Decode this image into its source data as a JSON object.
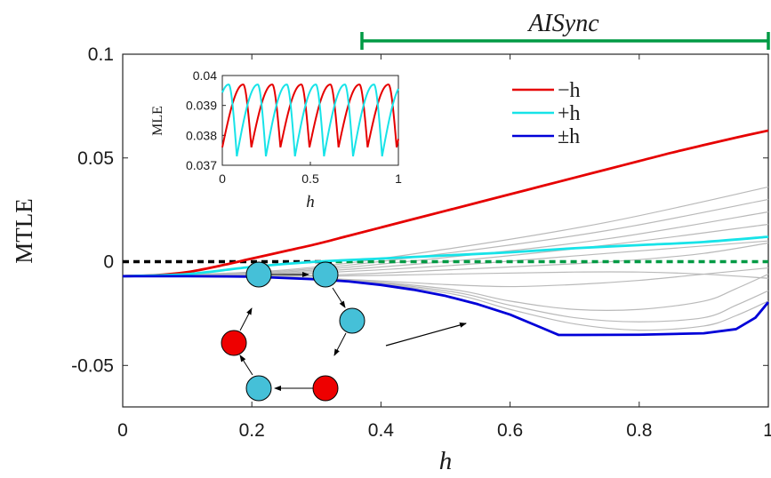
{
  "chart_data": [
    {
      "type": "line",
      "xlabel": "h",
      "ylabel": "MTLE",
      "xlim": [
        0,
        1
      ],
      "ylim": [
        -0.07,
        0.1
      ],
      "xticks": [
        "0",
        "0.2",
        "0.4",
        "0.6",
        "0.8",
        "1"
      ],
      "yticks": [
        "0.1",
        "0.05",
        "0",
        "-0.05"
      ],
      "legend": {
        "placement": "top-right",
        "entries": [
          "−h",
          "+h",
          "±h"
        ]
      },
      "annotation": {
        "label": "AISync",
        "x_range": [
          0.37,
          1.0
        ],
        "color": "#009a44"
      },
      "zero_line": {
        "y": 0,
        "black_range": [
          0,
          0.33
        ],
        "green_range": [
          0.33,
          1.0
        ]
      },
      "series": [
        {
          "name": "−h",
          "color": "#e60000",
          "x": [
            0,
            0.05,
            0.1,
            0.15,
            0.2,
            0.25,
            0.3,
            0.35,
            0.4,
            0.45,
            0.5,
            0.55,
            0.6,
            0.65,
            0.7,
            0.75,
            0.8,
            0.85,
            0.9,
            0.95,
            1.0
          ],
          "y": [
            -0.007,
            -0.0065,
            -0.005,
            -0.002,
            0.0015,
            0.005,
            0.0085,
            0.0125,
            0.0165,
            0.0205,
            0.0245,
            0.0285,
            0.0325,
            0.0365,
            0.0405,
            0.0445,
            0.0485,
            0.0525,
            0.0562,
            0.0598,
            0.0632
          ]
        },
        {
          "name": "+h",
          "color": "#17e3e8",
          "x": [
            0,
            0.1,
            0.2,
            0.3,
            0.4,
            0.5,
            0.6,
            0.7,
            0.8,
            0.9,
            1.0
          ],
          "y": [
            -0.007,
            -0.006,
            -0.0025,
            0.0,
            0.0015,
            0.003,
            0.0045,
            0.0065,
            0.008,
            0.0095,
            0.012
          ]
        },
        {
          "name": "±h",
          "color": "#0000d8",
          "x": [
            0,
            0.1,
            0.2,
            0.3,
            0.35,
            0.4,
            0.45,
            0.5,
            0.55,
            0.6,
            0.65,
            0.675,
            0.7,
            0.8,
            0.9,
            0.95,
            0.98,
            1.0
          ],
          "y": [
            -0.007,
            -0.007,
            -0.0072,
            -0.0085,
            -0.0095,
            -0.0112,
            -0.0135,
            -0.0165,
            -0.0205,
            -0.0255,
            -0.032,
            -0.0353,
            -0.0353,
            -0.0352,
            -0.0345,
            -0.0325,
            -0.027,
            -0.0195
          ]
        }
      ],
      "gray_series": [
        {
          "x": [
            0,
            0.25,
            0.5,
            0.75,
            1.0
          ],
          "y": [
            -0.007,
            -0.004,
            0.006,
            0.019,
            0.036
          ]
        },
        {
          "x": [
            0,
            0.25,
            0.5,
            0.75,
            1.0
          ],
          "y": [
            -0.007,
            -0.0045,
            0.004,
            0.015,
            0.03
          ]
        },
        {
          "x": [
            0,
            0.25,
            0.5,
            0.75,
            1.0
          ],
          "y": [
            -0.007,
            -0.005,
            0.002,
            0.011,
            0.024
          ]
        },
        {
          "x": [
            0,
            0.25,
            0.5,
            0.75,
            1.0
          ],
          "y": [
            -0.007,
            -0.0055,
            0.0,
            0.008,
            0.018
          ]
        },
        {
          "x": [
            0,
            0.25,
            0.5,
            0.75,
            1.0
          ],
          "y": [
            -0.007,
            -0.006,
            -0.002,
            0.004,
            0.01
          ]
        },
        {
          "x": [
            0,
            0.3,
            0.5,
            0.7,
            0.8,
            0.9,
            1.0
          ],
          "y": [
            -0.007,
            -0.0065,
            -0.004,
            -0.001,
            0.001,
            0.004,
            0.009
          ]
        },
        {
          "x": [
            0,
            0.3,
            0.5,
            0.7,
            0.8,
            0.9,
            1.0
          ],
          "y": [
            -0.007,
            -0.007,
            -0.006,
            -0.005,
            -0.005,
            -0.006,
            -0.008
          ]
        },
        {
          "x": [
            0,
            0.3,
            0.5,
            0.6,
            0.7,
            0.8,
            0.9,
            1.0
          ],
          "y": [
            -0.007,
            -0.008,
            -0.011,
            -0.012,
            -0.011,
            -0.009,
            -0.006,
            -0.003
          ]
        },
        {
          "x": [
            0,
            0.3,
            0.5,
            0.6,
            0.7,
            0.8,
            0.9,
            0.95,
            1.0
          ],
          "y": [
            -0.007,
            -0.008,
            -0.013,
            -0.019,
            -0.023,
            -0.023,
            -0.019,
            -0.013,
            -0.006
          ]
        },
        {
          "x": [
            0,
            0.3,
            0.5,
            0.6,
            0.7,
            0.8,
            0.9,
            0.95,
            1.0
          ],
          "y": [
            -0.007,
            -0.008,
            -0.014,
            -0.021,
            -0.027,
            -0.029,
            -0.027,
            -0.021,
            -0.014
          ]
        },
        {
          "x": [
            0,
            0.3,
            0.5,
            0.6,
            0.7,
            0.8,
            0.9,
            0.95,
            1.0
          ],
          "y": [
            -0.007,
            -0.008,
            -0.015,
            -0.023,
            -0.03,
            -0.033,
            -0.031,
            -0.026,
            -0.019
          ]
        }
      ]
    },
    {
      "type": "line",
      "ylabel": "MLE",
      "xlabel": "h",
      "xlim": [
        0,
        1
      ],
      "ylim": [
        0.037,
        0.04
      ],
      "xticks": [
        "0",
        "0.5",
        "1"
      ],
      "yticks": [
        "0.04",
        "0.039",
        "0.038",
        "0.037"
      ],
      "series": [
        {
          "name": "−h",
          "color": "#e60000",
          "period": 0.165,
          "phase": 0.0,
          "min": 0.0376,
          "max": 0.0397
        },
        {
          "name": "+h",
          "color": "#17e3e8",
          "period": 0.165,
          "phase": 0.0825,
          "min": 0.0373,
          "max": 0.0397
        }
      ]
    }
  ],
  "network": {
    "nodes": [
      {
        "id": "a",
        "color": "#45c0d8"
      },
      {
        "id": "b",
        "color": "#45c0d8"
      },
      {
        "id": "c",
        "color": "#45c0d8"
      },
      {
        "id": "d",
        "color": "#ee0000"
      },
      {
        "id": "e",
        "color": "#45c0d8"
      },
      {
        "id": "f",
        "color": "#ee0000"
      }
    ]
  }
}
